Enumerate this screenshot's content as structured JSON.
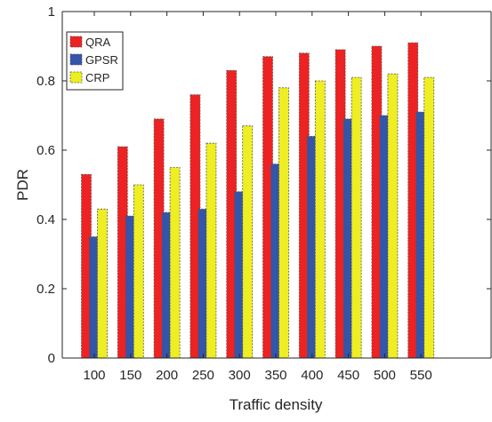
{
  "chart_data": {
    "type": "bar",
    "title": "",
    "xlabel": "Traffic density",
    "ylabel": "PDR",
    "categories": [
      "100",
      "150",
      "200",
      "250",
      "300",
      "350",
      "400",
      "450",
      "500",
      "550"
    ],
    "series": [
      {
        "name": "QRA",
        "color": "#ee2222",
        "values": [
          0.53,
          0.61,
          0.69,
          0.76,
          0.83,
          0.87,
          0.88,
          0.89,
          0.9,
          0.91
        ]
      },
      {
        "name": "GPSR",
        "color": "#3355aa",
        "values": [
          0.35,
          0.41,
          0.42,
          0.43,
          0.48,
          0.56,
          0.64,
          0.69,
          0.7,
          0.71
        ]
      },
      {
        "name": "CRP",
        "color": "#eeee22",
        "values": [
          0.43,
          0.5,
          0.55,
          0.62,
          0.67,
          0.78,
          0.8,
          0.81,
          0.82,
          0.81
        ]
      }
    ],
    "ylim": [
      0,
      1
    ],
    "yticks": [
      "0",
      "0.2",
      "0.4",
      "0.6",
      "0.8",
      "1"
    ],
    "grid": false,
    "legend_position": "top-left",
    "colors": {
      "axis": "#262626",
      "bar_edge": "#555555"
    }
  }
}
